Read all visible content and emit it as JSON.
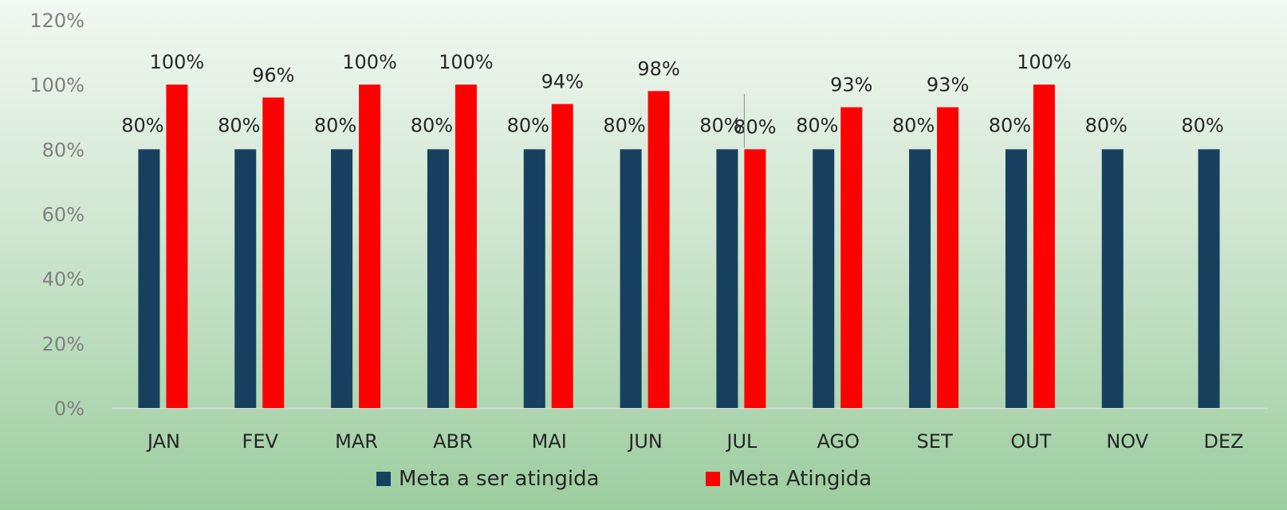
{
  "chart_data": {
    "type": "bar",
    "categories": [
      "JAN",
      "FEV",
      "MAR",
      "ABR",
      "MAI",
      "JUN",
      "JUL",
      "AGO",
      "SET",
      "OUT",
      "NOV",
      "DEZ"
    ],
    "series": [
      {
        "name": "Meta a ser atingida",
        "color": "#17405f",
        "values": [
          80,
          80,
          80,
          80,
          80,
          80,
          80,
          80,
          80,
          80,
          80,
          80
        ],
        "labels": [
          "80%",
          "80%",
          "80%",
          "80%",
          "80%",
          "80%",
          "80%",
          "80%",
          "80%",
          "80%",
          "80%",
          "80%"
        ]
      },
      {
        "name": "Meta Atingida",
        "color": "#ff0000",
        "values": [
          100,
          96,
          100,
          100,
          94,
          98,
          80,
          93,
          93,
          100,
          null,
          null
        ],
        "labels": [
          "100%",
          "96%",
          "100%",
          "100%",
          "94%",
          "98%",
          "80%",
          "93%",
          "93%",
          "100%",
          null,
          null
        ]
      }
    ],
    "ylim": [
      0,
      120
    ],
    "yticks": [
      "0%",
      "20%",
      "40%",
      "60%",
      "80%",
      "100%",
      "120%"
    ],
    "ytick_values": [
      0,
      20,
      40,
      60,
      80,
      100,
      120
    ],
    "legend_position": "bottom",
    "grid": false
  }
}
